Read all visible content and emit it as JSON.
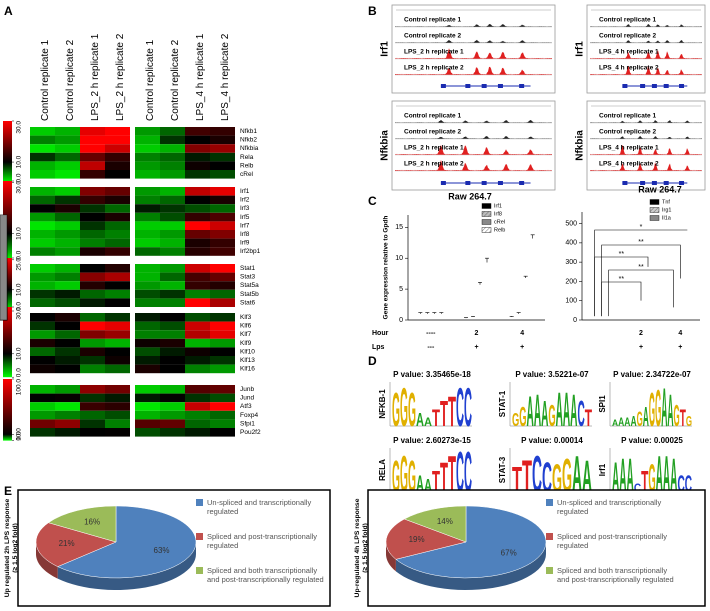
{
  "panel_labels": [
    "A",
    "B",
    "C",
    "D",
    "E"
  ],
  "chart_data": [
    {
      "type": "heatmap",
      "columns": [
        "Control replicate 1",
        "Control replicate 2",
        "LPS_2 h replicate 1",
        "LPS_2 h replicate 2",
        "Control replicate 1",
        "Control replicate 2",
        "LPS_4 h replicate 1",
        "LPS_4 h replicate 2"
      ],
      "colors": {
        "low": "#00ff00",
        "mid": "#000000",
        "high": "#ff0000"
      },
      "groups": [
        {
          "rows": [
            "Nfkb1",
            "Nfkb2",
            "Nfkbia",
            "Rela",
            "Relb",
            "cRel"
          ],
          "scale_ticks": [
            {
              "value": 30,
              "label": "30.0"
            },
            {
              "value": 10,
              "label": "10.0"
            },
            {
              "value": 0,
              "label": "0.0"
            }
          ],
          "values": [
            [
              2,
              3,
              28,
              30,
              4,
              6,
              15,
              14
            ],
            [
              5,
              4,
              30,
              30,
              3,
              8,
              10,
              12
            ],
            [
              1,
              2,
              30,
              26,
              2,
              3,
              20,
              22
            ],
            [
              8,
              6,
              18,
              14,
              5,
              6,
              9,
              8
            ],
            [
              3,
              2,
              25,
              12,
              4,
              5,
              11,
              10
            ],
            [
              2,
              1,
              14,
              10,
              3,
              4,
              8,
              7
            ]
          ]
        },
        {
          "rows": [
            "Irf1",
            "Irf2",
            "Irf3",
            "Irf5",
            "Irf7",
            "Irf8",
            "Irf9",
            "Irf2bp1"
          ],
          "scale_ticks": [
            {
              "value": 30,
              "label": "30.0"
            },
            {
              "value": 10,
              "label": "10.0"
            },
            {
              "value": 0,
              "label": "0.0"
            }
          ],
          "values": [
            [
              3,
              2,
              20,
              18,
              4,
              3,
              25,
              28
            ],
            [
              6,
              8,
              14,
              12,
              5,
              6,
              10,
              12
            ],
            [
              10,
              12,
              8,
              6,
              9,
              8,
              7,
              6
            ],
            [
              4,
              6,
              10,
              12,
              5,
              7,
              14,
              16
            ],
            [
              1,
              2,
              8,
              6,
              2,
              2,
              30,
              26
            ],
            [
              3,
              4,
              6,
              5,
              3,
              4,
              18,
              20
            ],
            [
              2,
              3,
              5,
              6,
              2,
              3,
              12,
              14
            ],
            [
              5,
              4,
              12,
              14,
              6,
              5,
              13,
              15
            ]
          ]
        },
        {
          "rows": [
            "Stat1",
            "Stat3",
            "Stat5a",
            "Stat5b",
            "Stat6"
          ],
          "scale_ticks": [
            {
              "value": 25,
              "label": "25.0"
            },
            {
              "value": 10,
              "label": "10.0"
            },
            {
              "value": 0,
              "label": "0.0"
            }
          ],
          "values": [
            [
              2,
              3,
              10,
              12,
              3,
              4,
              22,
              25
            ],
            [
              4,
              5,
              18,
              20,
              3,
              6,
              14,
              16
            ],
            [
              3,
              2,
              12,
              10,
              4,
              3,
              13,
              12
            ],
            [
              8,
              9,
              6,
              5,
              7,
              8,
              5,
              6
            ],
            [
              6,
              7,
              9,
              10,
              5,
              5,
              25,
              20
            ]
          ]
        },
        {
          "rows": [
            "Klf3",
            "Klf6",
            "Klf7",
            "Klf9",
            "Klf10",
            "Klf13",
            "Klf16"
          ],
          "scale_ticks": [
            {
              "value": 30,
              "label": "30.0"
            },
            {
              "value": 10,
              "label": "10.0"
            },
            {
              "value": 0,
              "label": "0.0"
            }
          ],
          "values": [
            [
              10,
              12,
              6,
              8,
              9,
              10,
              7,
              8
            ],
            [
              8,
              10,
              30,
              28,
              6,
              7,
              26,
              30
            ],
            [
              4,
              6,
              20,
              22,
              5,
              5,
              24,
              28
            ],
            [
              12,
              10,
              4,
              3,
              11,
              12,
              3,
              4
            ],
            [
              6,
              8,
              12,
              10,
              7,
              9,
              11,
              10
            ],
            [
              10,
              9,
              8,
              11,
              9,
              10,
              9,
              8
            ],
            [
              11,
              10,
              5,
              6,
              12,
              10,
              5,
              4
            ]
          ]
        },
        {
          "rows": [
            "Junb",
            "Jund",
            "Atf3",
            "Foxp4",
            "Sfpi1",
            "Pou2f2"
          ],
          "scale_ticks": [
            {
              "value": 100,
              "label": "100.0"
            },
            {
              "value": 10,
              "label": "10.0"
            },
            {
              "value": 0,
              "label": "0.0"
            }
          ],
          "values": [
            [
              3,
              4,
              60,
              50,
              2,
              3,
              40,
              45
            ],
            [
              10,
              12,
              8,
              9,
              9,
              11,
              8,
              7
            ],
            [
              2,
              1,
              30,
              25,
              1,
              2,
              80,
              100
            ],
            [
              4,
              5,
              6,
              7,
              3,
              4,
              5,
              6
            ],
            [
              50,
              60,
              8,
              5,
              40,
              45,
              6,
              5
            ],
            [
              8,
              9,
              10,
              11,
              7,
              8,
              9,
              10
            ]
          ]
        }
      ]
    },
    {
      "type": "bar",
      "title": "Raw 264.7",
      "ylabel": "Gene expression relative to Gpdh",
      "row_labels": [
        "Hour",
        "Lps"
      ],
      "categories": [
        "----",
        "2",
        "4"
      ],
      "lps": [
        "---",
        "+",
        "+"
      ],
      "ylim": [
        0,
        17
      ],
      "yticks": [
        0,
        5,
        10,
        15
      ],
      "series": [
        {
          "name": "Irf1",
          "color": "#000000",
          "hatched": false,
          "values": [
            1.0,
            0.3,
            0.5
          ],
          "errors": [
            0.2,
            0.1,
            0.1
          ]
        },
        {
          "name": "Irf8",
          "color": "#bbbbbb",
          "hatched": true,
          "values": [
            1.0,
            0.5,
            1.0
          ],
          "errors": [
            0.2,
            0.1,
            0.2
          ]
        },
        {
          "name": "cRel",
          "color": "#888888",
          "hatched": false,
          "values": [
            1.0,
            5.7,
            6.8
          ],
          "errors": [
            0.2,
            0.4,
            0.3
          ]
        },
        {
          "name": "Relb",
          "color": "#ffffff",
          "hatched": true,
          "values": [
            1.0,
            9.3,
            13.2
          ],
          "errors": [
            0.2,
            0.7,
            0.6
          ]
        }
      ]
    },
    {
      "type": "bar",
      "title": "Raw 264.7",
      "categories": [
        null,
        "2",
        "4"
      ],
      "lps": [
        null,
        "+",
        "+"
      ],
      "ylim": [
        0,
        560
      ],
      "yticks": [
        0,
        100,
        200,
        300,
        400,
        500
      ],
      "series": [
        {
          "name": "Tnf",
          "color": "#000000",
          "hatched": false,
          "values": [
            10,
            45,
            55
          ]
        },
        {
          "name": "Irg1",
          "color": "#cccccc",
          "hatched": true,
          "values": [
            10,
            90,
            205
          ]
        },
        {
          "name": "Il1a",
          "color": "#888888",
          "hatched": false,
          "values": [
            10,
            265,
            545
          ]
        }
      ],
      "annotations": [
        "*",
        "**",
        "**",
        "**",
        "**"
      ]
    },
    {
      "type": "pie",
      "ylabel": [
        "Up regulated 2h LPS  response",
        "(≥ 1.5 log2 fold)"
      ],
      "categories": [
        "Un-spliced and transcriptionally regulated",
        "Spliced and post-transcriptionally regulated",
        "Spliced and both transcriptionally and post-transcriptionally regulated"
      ],
      "values": [
        63,
        21,
        16
      ],
      "value_labels": [
        "63%",
        "21%",
        "16%"
      ],
      "colors": [
        "#4f81bd",
        "#c0504d",
        "#9bbb59"
      ]
    },
    {
      "type": "pie",
      "ylabel": [
        "Up-regulated 4h LPS response",
        "(≥ 1.5 log2 fold)"
      ],
      "categories": [
        "Un-spliced and transcriptionally regulated",
        "Spliced and post-transcriptionally regulated",
        "Spliced and both transcriptionally and post-transcriptionally regulated"
      ],
      "values": [
        67,
        19,
        14
      ],
      "value_labels": [
        "67%",
        "19%",
        "14%"
      ],
      "colors": [
        "#4f81bd",
        "#c0504d",
        "#9bbb59"
      ]
    }
  ],
  "browser": [
    {
      "gene": "Irf1",
      "tracks": [
        "Control replicate 1",
        "Control replicate 2",
        "LPS_2 h replicate 1",
        "LPS_2 h replicate 2"
      ]
    },
    {
      "gene": "Irf1",
      "tracks": [
        "Control replicate 1",
        "Control replicate 2",
        "LPS_4 h replicate 1",
        "LPS_4 h replicate 2"
      ]
    },
    {
      "gene": "Nfkbia",
      "tracks": [
        "Control replicate 1",
        "Control replicate 2",
        "LPS_2 h replicate 1",
        "LPS_2 h replicate 2"
      ]
    },
    {
      "gene": "Nfkbia",
      "tracks": [
        "Control replicate 1",
        "Control replicate 2",
        "LPS_4 h replicate 1",
        "LPS_4 h replicate 2"
      ]
    }
  ],
  "letter_colors": {
    "A": "#22a022",
    "C": "#2040d0",
    "G": "#e0b000",
    "T": "#e02020"
  },
  "motifs": [
    {
      "name": "NFKB-1",
      "p_value": "P value: 3.35465e-18",
      "letters": [
        "G",
        "G",
        "G",
        "A",
        "A",
        "T",
        "T",
        "T",
        "C",
        "C"
      ],
      "heights": [
        1.6,
        1.8,
        1.6,
        0.6,
        0.4,
        0.8,
        1.2,
        1.4,
        1.8,
        1.8
      ]
    },
    {
      "name": "STAT-1",
      "p_value": "P value: 3.5221e-07",
      "letters": [
        "G",
        "G",
        "A",
        "A",
        "A",
        "G",
        "A",
        "A",
        "A",
        "C",
        "T"
      ],
      "heights": [
        0.6,
        0.9,
        1.4,
        1.5,
        1.2,
        1.0,
        1.6,
        1.6,
        1.5,
        1.2,
        0.8
      ]
    },
    {
      "name": "SPI1",
      "p_value": "P value: 2.34722e-07",
      "letters": [
        "A",
        "A",
        "A",
        "A",
        "G",
        "A",
        "G",
        "G",
        "A",
        "A",
        "G",
        "T",
        "G"
      ],
      "heights": [
        0.3,
        0.4,
        0.4,
        0.5,
        0.7,
        0.9,
        1.6,
        1.7,
        1.8,
        1.5,
        1.0,
        0.8,
        0.5
      ]
    },
    {
      "name": "RELA",
      "p_value": "P value: 2.60273e-15",
      "letters": [
        "G",
        "G",
        "G",
        "A",
        "A",
        "T",
        "T",
        "T",
        "C",
        "C"
      ],
      "heights": [
        1.5,
        1.7,
        1.5,
        0.8,
        0.6,
        1.0,
        1.4,
        1.7,
        1.9,
        1.9
      ]
    },
    {
      "name": "STAT-3",
      "p_value": "P value: 0.00014",
      "letters": [
        "T",
        "T",
        "C",
        "C",
        "G",
        "G",
        "A",
        "A"
      ],
      "heights": [
        1.2,
        1.5,
        1.7,
        1.4,
        1.3,
        1.6,
        1.7,
        1.5
      ]
    },
    {
      "name": "Irf1",
      "p_value": "P value: 0.00025",
      "letters": [
        "A",
        "A",
        "A",
        "C",
        "T",
        "G",
        "A",
        "A",
        "A",
        "C",
        "C"
      ],
      "heights": [
        1.4,
        1.6,
        1.6,
        0.4,
        1.0,
        1.3,
        1.7,
        1.7,
        1.6,
        0.8,
        0.8
      ]
    }
  ]
}
